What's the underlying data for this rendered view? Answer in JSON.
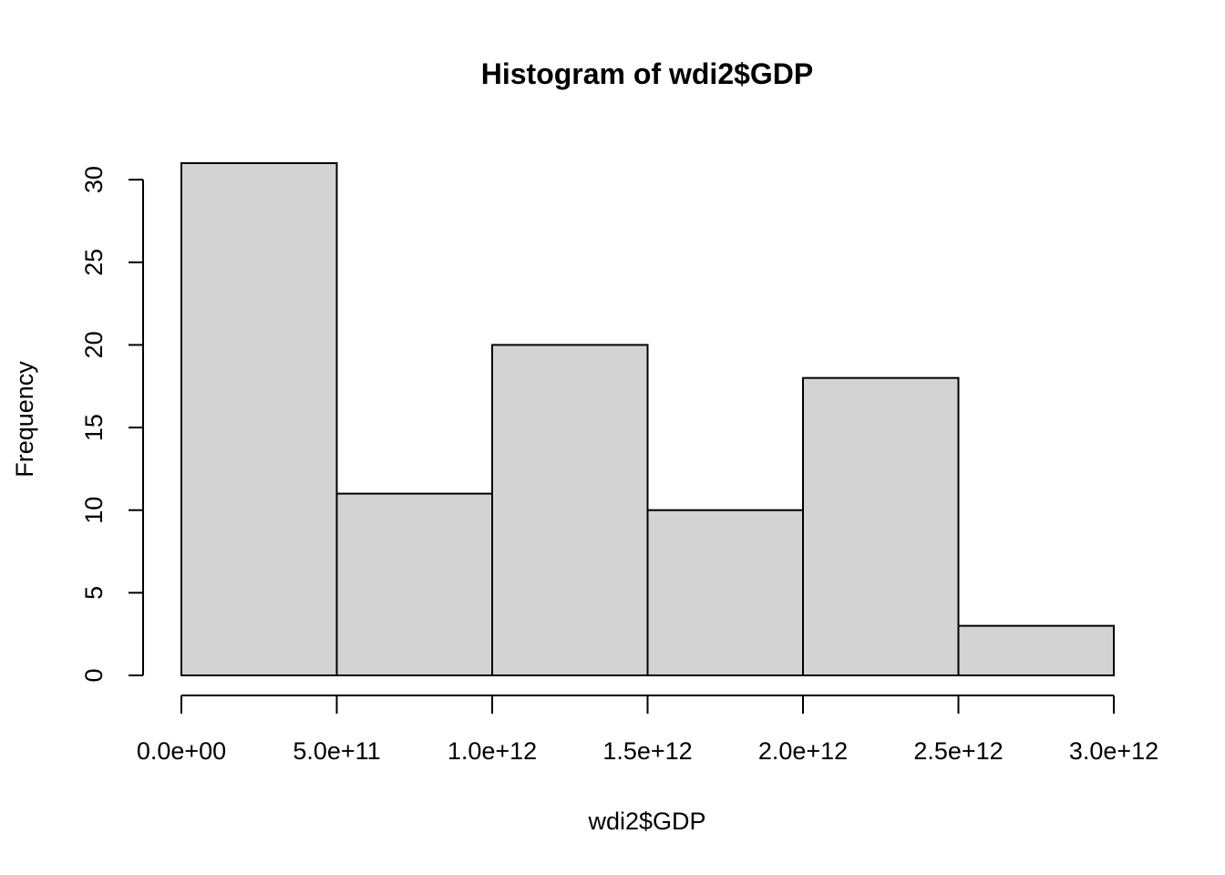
{
  "chart_data": {
    "type": "bar",
    "title": "Histogram of wdi2$GDP",
    "xlabel": "wdi2$GDP",
    "ylabel": "Frequency",
    "bins": [
      {
        "from": 0.0,
        "to": 500000000000.0,
        "count": 31
      },
      {
        "from": 500000000000.0,
        "to": 1000000000000.0,
        "count": 11
      },
      {
        "from": 1000000000000.0,
        "to": 1500000000000.0,
        "count": 20
      },
      {
        "from": 1500000000000.0,
        "to": 2000000000000.0,
        "count": 10
      },
      {
        "from": 2000000000000.0,
        "to": 2500000000000.0,
        "count": 18
      },
      {
        "from": 2500000000000.0,
        "to": 3000000000000.0,
        "count": 3
      }
    ],
    "xlim": [
      0,
      3000000000000.0
    ],
    "ylim": [
      0,
      31
    ],
    "x_ticks": [
      {
        "value": 0.0,
        "label": "0.0e+00"
      },
      {
        "value": 500000000000.0,
        "label": "5.0e+11"
      },
      {
        "value": 1000000000000.0,
        "label": "1.0e+12"
      },
      {
        "value": 1500000000000.0,
        "label": "1.5e+12"
      },
      {
        "value": 2000000000000.0,
        "label": "2.0e+12"
      },
      {
        "value": 2500000000000.0,
        "label": "2.5e+12"
      },
      {
        "value": 3000000000000.0,
        "label": "3.0e+12"
      }
    ],
    "y_ticks": [
      {
        "value": 0,
        "label": "0"
      },
      {
        "value": 5,
        "label": "5"
      },
      {
        "value": 10,
        "label": "10"
      },
      {
        "value": 15,
        "label": "15"
      },
      {
        "value": 20,
        "label": "20"
      },
      {
        "value": 25,
        "label": "25"
      },
      {
        "value": 30,
        "label": "30"
      }
    ],
    "bar_color": "#d3d3d3",
    "border_color": "#000000"
  }
}
